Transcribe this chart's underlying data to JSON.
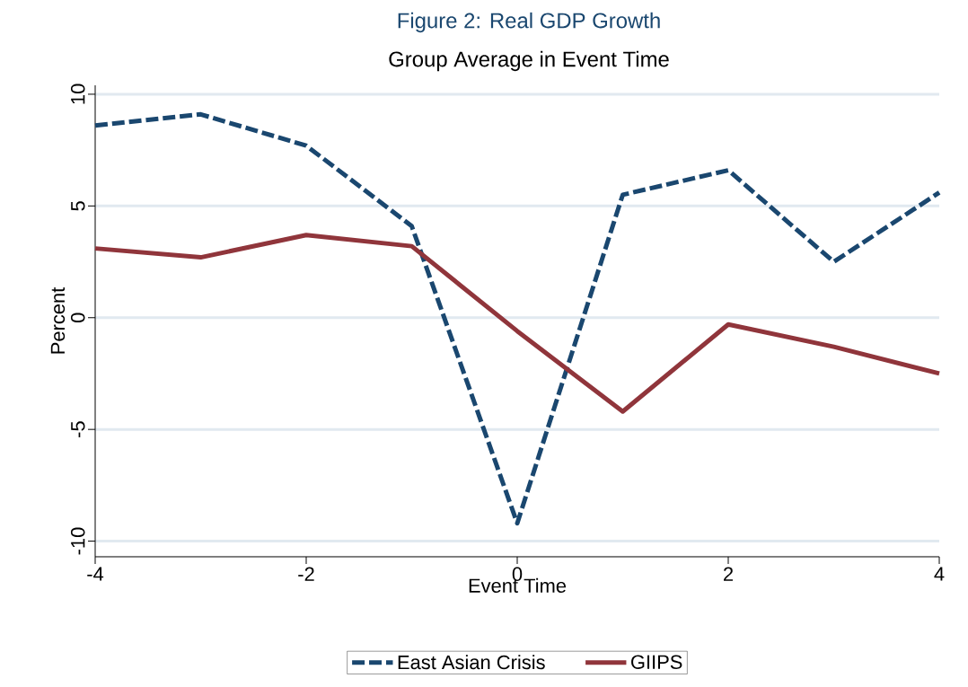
{
  "chart_data": {
    "type": "line",
    "title": "Figure 2: Real GDP Growth",
    "subtitle": "Group Average in Event Time",
    "xlabel": "Event Time",
    "ylabel": "Percent",
    "x": [
      -4,
      -3,
      -2,
      -1,
      0,
      1,
      2,
      3,
      4
    ],
    "series": [
      {
        "name": "East Asian Crisis",
        "color": "#1a476f",
        "line_style": "dashed",
        "values": [
          8.6,
          9.1,
          7.7,
          4.1,
          -9.2,
          5.5,
          6.6,
          2.5,
          5.6
        ]
      },
      {
        "name": "GIIPS",
        "color": "#90353b",
        "line_style": "solid",
        "values": [
          3.1,
          2.7,
          3.7,
          3.2,
          -0.6,
          -4.2,
          -0.3,
          -1.3,
          -2.5
        ]
      }
    ],
    "xlim": [
      -4,
      4
    ],
    "ylim": [
      -10.7,
      10.4
    ],
    "xticks": [
      -4,
      -2,
      0,
      2,
      4
    ],
    "yticks": [
      -10,
      -5,
      0,
      5,
      10
    ],
    "grid": "y",
    "legend": "bottom",
    "marker": "none"
  }
}
